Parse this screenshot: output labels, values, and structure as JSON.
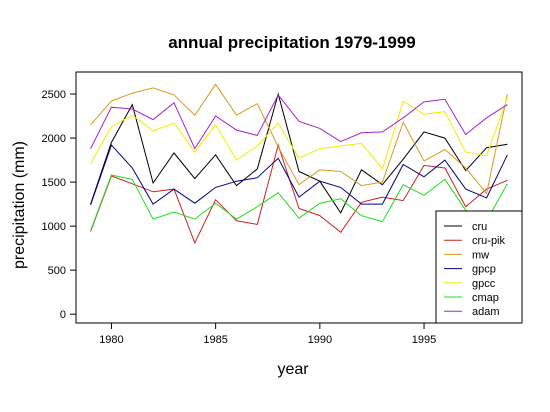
{
  "chart_data": {
    "type": "line",
    "title": "annual precipitation 1979-1999",
    "xlabel": "year",
    "ylabel": "precipitation (mm)",
    "xlim": [
      1978.3,
      1999.7
    ],
    "ylim": [
      -100,
      2750
    ],
    "x": [
      1979,
      1980,
      1981,
      1982,
      1983,
      1984,
      1985,
      1986,
      1987,
      1988,
      1989,
      1990,
      1991,
      1992,
      1993,
      1994,
      1995,
      1996,
      1997,
      1998,
      1999
    ],
    "x_ticks": [
      1980,
      1985,
      1990,
      1995
    ],
    "y_ticks": [
      0,
      500,
      1000,
      1500,
      2000,
      2500
    ],
    "legend_position": "bottom-right",
    "grid": false,
    "series": [
      {
        "name": "cru",
        "color": "#000000",
        "values": [
          1250,
          1950,
          2380,
          1490,
          1830,
          1540,
          1810,
          1460,
          1650,
          2500,
          1620,
          1510,
          1150,
          1640,
          1470,
          1760,
          2070,
          2000,
          1630,
          1890,
          1930
        ]
      },
      {
        "name": "cru-pik",
        "color": "#cc2222",
        "values": [
          940,
          1570,
          1480,
          1390,
          1420,
          810,
          1300,
          1060,
          1020,
          1920,
          1200,
          1120,
          930,
          1270,
          1330,
          1290,
          1690,
          1660,
          1220,
          1420,
          1520
        ]
      },
      {
        "name": "mw",
        "color": "#dd9922",
        "values": [
          2150,
          2420,
          2510,
          2570,
          2490,
          2260,
          2610,
          2260,
          2390,
          1900,
          1470,
          1640,
          1620,
          1460,
          1500,
          2180,
          1740,
          1870,
          1660,
          1370,
          2500
        ]
      },
      {
        "name": "gpcp",
        "color": "#000080",
        "values": [
          1240,
          1920,
          1660,
          1250,
          1420,
          1260,
          1440,
          1510,
          1550,
          1770,
          1330,
          1510,
          1440,
          1250,
          1250,
          1700,
          1560,
          1750,
          1420,
          1320,
          1810
        ]
      },
      {
        "name": "gpcc",
        "color": "#eeee00",
        "values": [
          1710,
          2130,
          2260,
          2080,
          2170,
          1840,
          2150,
          1750,
          1910,
          2170,
          1770,
          1880,
          1910,
          1940,
          1650,
          2420,
          2270,
          2300,
          1840,
          1800,
          2460
        ]
      },
      {
        "name": "cmap",
        "color": "#22dd22",
        "values": [
          950,
          1580,
          1530,
          1080,
          1160,
          1080,
          1260,
          1080,
          1220,
          1380,
          1090,
          1260,
          1310,
          1120,
          1050,
          1470,
          1350,
          1530,
          1180,
          1060,
          1480
        ]
      },
      {
        "name": "adam",
        "color": "#aa22cc",
        "values": [
          1880,
          2350,
          2330,
          2210,
          2400,
          1880,
          2250,
          2090,
          2030,
          2490,
          2190,
          2110,
          1960,
          2060,
          2070,
          2230,
          2410,
          2440,
          2040,
          2230,
          2380
        ]
      }
    ]
  }
}
